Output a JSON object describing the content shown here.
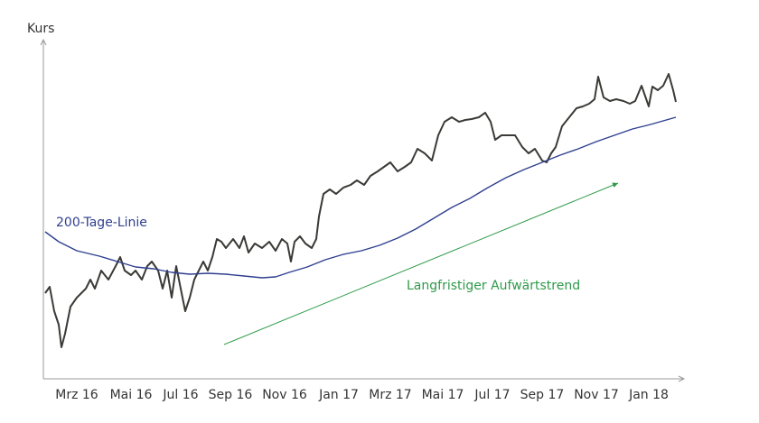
{
  "chart_data": {
    "type": "line",
    "ylabel": "Kurs",
    "xlim": [
      0,
      707
    ],
    "ylim": [
      0,
      375
    ],
    "xticks": [
      {
        "value": 37,
        "label": "Mrz 16"
      },
      {
        "value": 97,
        "label": "Mai 16"
      },
      {
        "value": 152,
        "label": "Jul 16"
      },
      {
        "value": 207,
        "label": "Sep 16"
      },
      {
        "value": 267,
        "label": "Nov 16"
      },
      {
        "value": 327,
        "label": "Jan 17"
      },
      {
        "value": 384,
        "label": "Mrz 17"
      },
      {
        "value": 442,
        "label": "Mai 17"
      },
      {
        "value": 497,
        "label": "Jul 17"
      },
      {
        "value": 552,
        "label": "Sep 17"
      },
      {
        "value": 612,
        "label": "Nov 17"
      },
      {
        "value": 670,
        "label": "Jan 18"
      }
    ],
    "annotations": [
      "Langfristiger Aufwärtstrend"
    ],
    "series": [
      {
        "color": "#3a3a36",
        "x": [
          2,
          7,
          12,
          17,
          20,
          24,
          30,
          37,
          42,
          47,
          52,
          57,
          64,
          72,
          80,
          85,
          90,
          97,
          102,
          109,
          115,
          120,
          127,
          132,
          137,
          142,
          147,
          152,
          157,
          162,
          167,
          172,
          177,
          182,
          187,
          192,
          197,
          202,
          210,
          217,
          222,
          227,
          234,
          242,
          250,
          257,
          264,
          270,
          274,
          278,
          284,
          290,
          297,
          302,
          305,
          310,
          317,
          324,
          332,
          340,
          347,
          355,
          362,
          370,
          377,
          384,
          392,
          400,
          407,
          414,
          422,
          430,
          437,
          444,
          452,
          460,
          467,
          474,
          482,
          489,
          495,
          500,
          507,
          514,
          522,
          530,
          537,
          544,
          552,
          557,
          562,
          567,
          574,
          582,
          590,
          597,
          604,
          610,
          614,
          620,
          627,
          634,
          642,
          649,
          655,
          662,
          670,
          674,
          680,
          686,
          692,
          697,
          700
        ],
        "values": [
          95,
          102,
          75,
          60,
          35,
          50,
          80,
          90,
          95,
          100,
          110,
          100,
          120,
          110,
          125,
          135,
          120,
          115,
          120,
          110,
          125,
          130,
          120,
          100,
          120,
          90,
          125,
          100,
          75,
          90,
          110,
          120,
          130,
          120,
          135,
          155,
          152,
          145,
          155,
          145,
          158,
          140,
          150,
          145,
          152,
          142,
          155,
          150,
          130,
          152,
          158,
          150,
          145,
          155,
          180,
          205,
          210,
          205,
          212,
          215,
          220,
          215,
          225,
          230,
          235,
          240,
          230,
          235,
          240,
          255,
          250,
          242,
          270,
          285,
          290,
          285,
          287,
          288,
          290,
          295,
          285,
          265,
          270,
          270,
          270,
          257,
          250,
          255,
          242,
          240,
          250,
          257,
          280,
          290,
          300,
          302,
          305,
          310,
          335,
          312,
          308,
          310,
          308,
          305,
          308,
          325,
          302,
          324,
          320,
          325,
          338,
          320,
          307
        ]
      },
      {
        "name": "200-Tage-Linie",
        "color": "#2f3f8f",
        "x": [
          2,
          17,
          37,
          62,
          82,
          102,
          122,
          142,
          162,
          182,
          202,
          222,
          242,
          257,
          272,
          292,
          312,
          332,
          352,
          372,
          392,
          412,
          432,
          452,
          472,
          492,
          512,
          532,
          552,
          572,
          592,
          612,
          632,
          652,
          672,
          700
        ],
        "values": [
          163,
          152,
          142,
          136,
          130,
          124,
          122,
          118,
          116,
          117,
          116,
          114,
          112,
          113,
          118,
          124,
          132,
          138,
          142,
          148,
          156,
          166,
          178,
          190,
          200,
          212,
          223,
          232,
          240,
          248,
          255,
          263,
          270,
          277,
          282,
          290
        ]
      }
    ]
  }
}
